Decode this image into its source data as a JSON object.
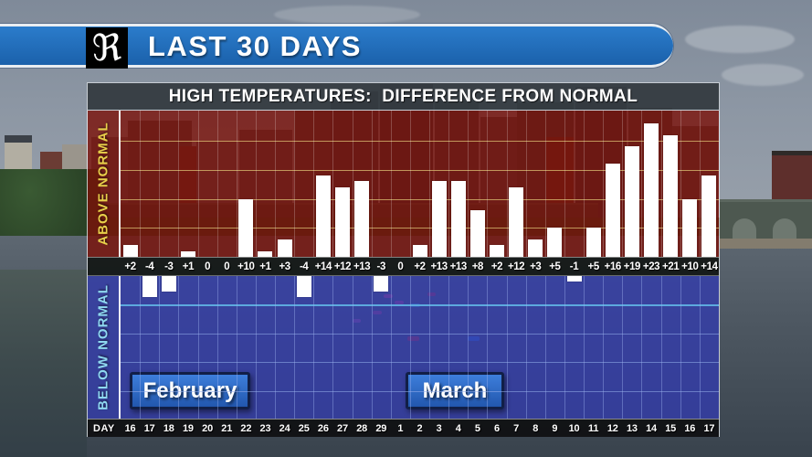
{
  "header": {
    "logo_glyph": "ℜ",
    "title": "LAST 30 DAYS"
  },
  "chart": {
    "title": "HIGH TEMPERATURES:  DIFFERENCE FROM NORMAL",
    "above_label": "ABOVE NORMAL",
    "below_label": "BELOW NORMAL",
    "day_axis_label": "DAY",
    "month_labels": {
      "february": "February",
      "march": "March"
    }
  },
  "chart_data": {
    "type": "bar",
    "title": "HIGH TEMPERATURES: DIFFERENCE FROM NORMAL",
    "xlabel": "DAY",
    "ylabel_positive": "ABOVE NORMAL",
    "ylabel_negative": "BELOW NORMAL",
    "categories": [
      "16",
      "17",
      "18",
      "19",
      "20",
      "21",
      "22",
      "23",
      "24",
      "25",
      "26",
      "27",
      "28",
      "29",
      "1",
      "2",
      "3",
      "4",
      "5",
      "6",
      "7",
      "8",
      "9",
      "10",
      "11",
      "12",
      "13",
      "14",
      "15",
      "16",
      "17"
    ],
    "values": [
      2,
      -4,
      -3,
      1,
      0,
      0,
      10,
      1,
      3,
      -4,
      14,
      12,
      13,
      -3,
      0,
      2,
      13,
      13,
      8,
      2,
      12,
      3,
      5,
      -1,
      5,
      16,
      19,
      23,
      21,
      10,
      14
    ],
    "bar_labels": [
      "+2",
      "-4",
      "-3",
      "+1",
      "0",
      "0",
      "+10",
      "+1",
      "+3",
      "-4",
      "+14",
      "+12",
      "+13",
      "-3",
      "0",
      "+2",
      "+13",
      "+13",
      "+8",
      "+2",
      "+12",
      "+3",
      "+5",
      "-1",
      "+5",
      "+16",
      "+19",
      "+23",
      "+21",
      "+10",
      "+14"
    ],
    "months": [
      {
        "name": "February",
        "first_category_index": 0,
        "last_category_index": 13
      },
      {
        "name": "March",
        "first_category_index": 14,
        "last_category_index": 30
      }
    ],
    "ylim": [
      -25,
      25
    ],
    "gridline_interval": 5,
    "grid": true,
    "legend": "none",
    "bar_color": "#ffffff"
  },
  "colors": {
    "banner_blue": "#2272bb",
    "above_overlay_red": "#7d2a26",
    "below_overlay_blue": "#3b449f",
    "above_label_yellow": "#e8cf4a",
    "below_label_cyan": "#8ed8f0",
    "gridline_tan": "#d2b46e",
    "gridline_cyan": "#5fafdf",
    "bar_white": "#ffffff",
    "month_box_blue": "#2e6fd0"
  }
}
